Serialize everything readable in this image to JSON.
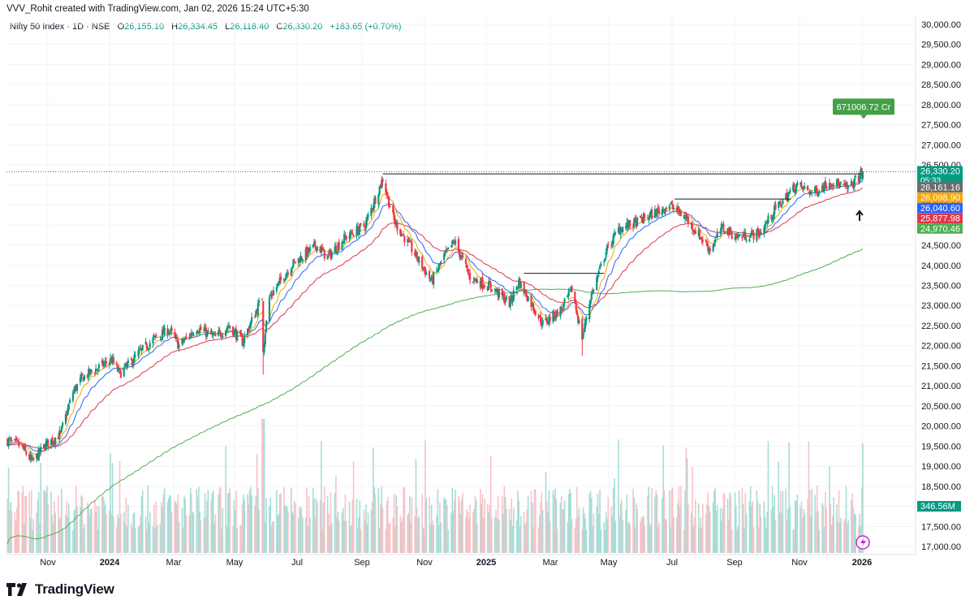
{
  "header": {
    "creator_line": "VVV_Rohit created with TradingView.com, Jan 02, 2026 15:24 UTC+5:30",
    "symbol": "Nifty 50 Index · 1D · NSE",
    "o_label": "O",
    "o_value": "26,155.10",
    "h_label": "H",
    "h_value": "26,334.45",
    "l_label": "L",
    "l_value": "26,118.40",
    "c_label": "C",
    "c_value": "26,330.20",
    "change": "+183.65 (+0.70%)"
  },
  "footer": {
    "logo_text": "TradingView",
    "logo_icon": "tradingview-logo-icon"
  },
  "colors": {
    "up": "#089981",
    "down": "#f23645",
    "ema_fast": "#f7a600",
    "ema_mid": "#2962ff",
    "ema_slow": "#e0374b",
    "sma_long": "#4caf50",
    "vol_up": "#a7ddd7",
    "vol_down": "#f7c3c7"
  },
  "chart_data": {
    "type": "candlestick",
    "symbol": "Nifty 50 Index",
    "interval": "1D",
    "exchange": "NSE",
    "ylim": [
      16800,
      30200
    ],
    "y_ticks": [
      "30,000.00",
      "29,500.00",
      "29,000.00",
      "28,500.00",
      "28,000.00",
      "27,500.00",
      "27,000.00",
      "26,500.00",
      "26,000.00",
      "25,500.00",
      "25,000.00",
      "24,500.00",
      "24,000.00",
      "23,500.00",
      "23,000.00",
      "22,500.00",
      "22,000.00",
      "21,500.00",
      "21,000.00",
      "20,500.00",
      "20,000.00",
      "19,500.00",
      "19,000.00",
      "18,500.00",
      "18,000.00",
      "17,500.00",
      "17,000.00"
    ],
    "y_tick_values": [
      30000,
      29500,
      29000,
      28500,
      28000,
      27500,
      27000,
      26500,
      26000,
      25500,
      25000,
      24500,
      24000,
      23500,
      23000,
      22500,
      22000,
      21500,
      21000,
      20500,
      20000,
      19500,
      19000,
      18500,
      18000,
      17500,
      17000
    ],
    "x_ticks": [
      {
        "label": "Nov",
        "bold": false
      },
      {
        "label": "2024",
        "bold": true
      },
      {
        "label": "Mar",
        "bold": false
      },
      {
        "label": "May",
        "bold": false
      },
      {
        "label": "Jul",
        "bold": false
      },
      {
        "label": "Sep",
        "bold": false
      },
      {
        "label": "Nov",
        "bold": false
      },
      {
        "label": "2025",
        "bold": true
      },
      {
        "label": "Mar",
        "bold": false
      },
      {
        "label": "May",
        "bold": false
      },
      {
        "label": "Jul",
        "bold": false
      },
      {
        "label": "Sep",
        "bold": false
      },
      {
        "label": "Nov",
        "bold": false
      },
      {
        "label": "2026",
        "bold": true
      }
    ],
    "close_path": {
      "dates": [
        "2023-10-01",
        "2023-10-15",
        "2023-10-26",
        "2023-11-08",
        "2023-11-22",
        "2023-12-04",
        "2023-12-13",
        "2023-12-22",
        "2024-01-10",
        "2024-01-18",
        "2024-02-05",
        "2024-02-19",
        "2024-03-05",
        "2024-03-15",
        "2024-04-01",
        "2024-04-19",
        "2024-05-02",
        "2024-05-15",
        "2024-06-03",
        "2024-06-04",
        "2024-06-10",
        "2024-07-01",
        "2024-07-25",
        "2024-08-05",
        "2024-08-20",
        "2024-09-10",
        "2024-09-27",
        "2024-10-08",
        "2024-10-25",
        "2024-11-13",
        "2024-11-25",
        "2024-12-05",
        "2024-12-20",
        "2025-01-10",
        "2025-01-27",
        "2025-02-05",
        "2025-02-28",
        "2025-03-18",
        "2025-03-28",
        "2025-04-07",
        "2025-04-15",
        "2025-04-30",
        "2025-05-12",
        "2025-06-01",
        "2025-06-30",
        "2025-07-15",
        "2025-08-08",
        "2025-08-20",
        "2025-09-03",
        "2025-09-25",
        "2025-10-10",
        "2025-10-30",
        "2025-11-15",
        "2025-12-02",
        "2025-12-19",
        "2026-01-02"
      ],
      "values": [
        19650,
        19500,
        19100,
        19550,
        19800,
        20850,
        21200,
        21350,
        21650,
        21300,
        21800,
        22150,
        22400,
        22000,
        22450,
        22200,
        22500,
        22100,
        23200,
        21950,
        23200,
        24000,
        24500,
        24200,
        24650,
        25000,
        26150,
        25100,
        24400,
        23600,
        24200,
        24600,
        23700,
        23450,
        23050,
        23600,
        22550,
        22900,
        23400,
        22200,
        23200,
        24350,
        24900,
        25100,
        25500,
        25200,
        24400,
        24950,
        24700,
        24800,
        25400,
        26000,
        25800,
        26100,
        25900,
        26330
      ]
    },
    "horizontal_lines": [
      {
        "from": "2024-09-27",
        "to": "2025-12-31",
        "value": 26277
      },
      {
        "from": "2025-07-05",
        "to": "2025-10-25",
        "value": 25650
      },
      {
        "from": "2025-02-10",
        "to": "2025-04-28",
        "value": 23800
      }
    ],
    "indicators": [
      {
        "name": "EMA fast",
        "color": "#f7a600",
        "last": "26,098.90"
      },
      {
        "name": "EMA mid",
        "color": "#2962ff",
        "last": "26,040.60"
      },
      {
        "name": "EMA slow",
        "color": "#e0374b",
        "last": "25,877.98"
      },
      {
        "name": "SMA long",
        "color": "#4caf50",
        "last": "24,970.46"
      }
    ],
    "price_labels": [
      {
        "text": "26,330.20",
        "sub": "05:33",
        "value": 26330.2,
        "color": "#089981"
      },
      {
        "text": "26,161.16",
        "value": 26161.16,
        "color": "#6b6b6b"
      },
      {
        "text": "26,098.90",
        "value": 26098.9,
        "color": "#f7a600"
      },
      {
        "text": "26,040.60",
        "value": 26040.6,
        "color": "#2962ff"
      },
      {
        "text": "25,877.98",
        "value": 25877.98,
        "color": "#e0374b"
      },
      {
        "text": "24,970.46",
        "value": 24970.46,
        "color": "#4caf50"
      }
    ],
    "volume_label": "346.56M",
    "callout": {
      "text": "671006.72 Cr",
      "value": 27950
    }
  }
}
